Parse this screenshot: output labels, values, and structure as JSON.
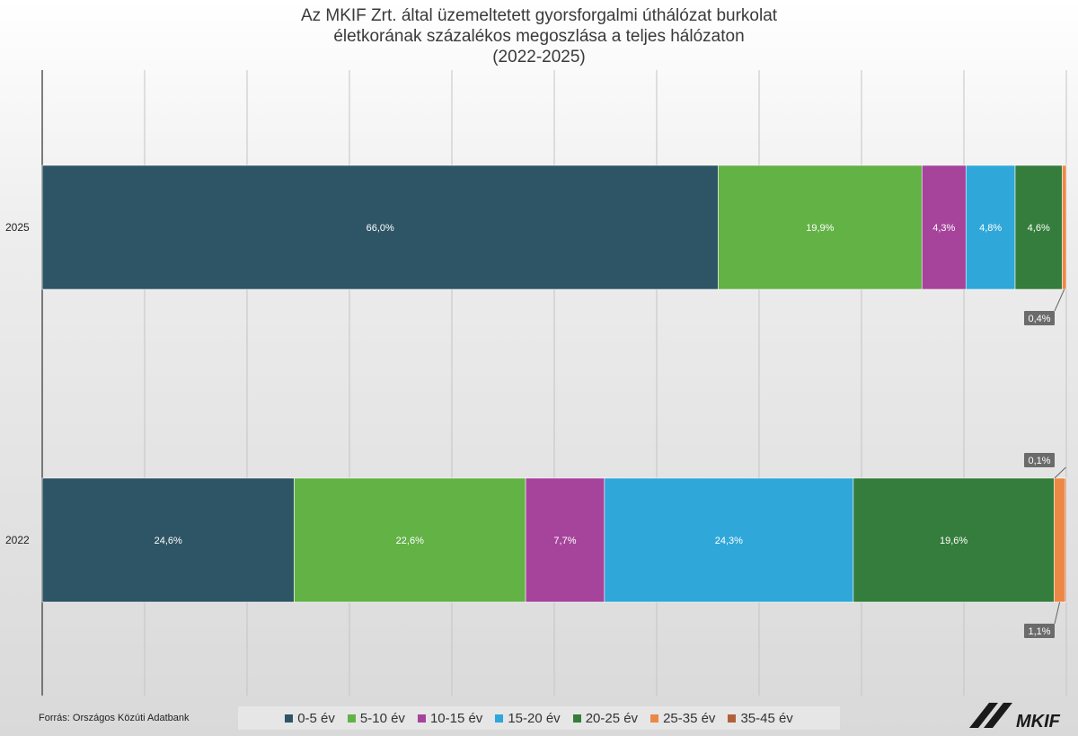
{
  "title_lines": [
    "Az MKIF Zrt. által üzemeltetett gyorsforgalmi úthálózat burkolat",
    "életkorának százalékos megoszlása a teljes hálózaton",
    "(2022-2025)"
  ],
  "source": "Forrás: Országos Közúti Adatbank",
  "logo_text": "MKIF",
  "chart_data": {
    "type": "bar",
    "orientation": "horizontal",
    "stacked": true,
    "categories": [
      "2025",
      "2022"
    ],
    "xlim": [
      0,
      100
    ],
    "grid": true,
    "legend_position": "bottom",
    "series": [
      {
        "name": "0-5 év",
        "color": "#2e5566",
        "values": [
          66.0,
          24.6
        ],
        "labels": [
          "66,0%",
          "24,6%"
        ]
      },
      {
        "name": "5-10 év",
        "color": "#62b246",
        "values": [
          19.9,
          22.6
        ],
        "labels": [
          "19,9%",
          "22,6%"
        ]
      },
      {
        "name": "10-15 év",
        "color": "#a6449b",
        "values": [
          4.3,
          7.7
        ],
        "labels": [
          "4,3%",
          "7,7%"
        ]
      },
      {
        "name": "15-20 év",
        "color": "#2fa7d9",
        "values": [
          4.8,
          24.3
        ],
        "labels": [
          "4,8%",
          "24,3%"
        ]
      },
      {
        "name": "20-25 év",
        "color": "#347d3c",
        "values": [
          4.6,
          19.6
        ],
        "labels": [
          "4,6%",
          "19,6%"
        ]
      },
      {
        "name": "25-35 év",
        "color": "#ec8846",
        "values": [
          0.4,
          1.1
        ],
        "labels": [
          "0,4%",
          "1,1%"
        ]
      },
      {
        "name": "35-45 év",
        "color": "#b0613c",
        "values": [
          0.0,
          0.1
        ],
        "labels": [
          "",
          "0,1%"
        ]
      }
    ]
  }
}
